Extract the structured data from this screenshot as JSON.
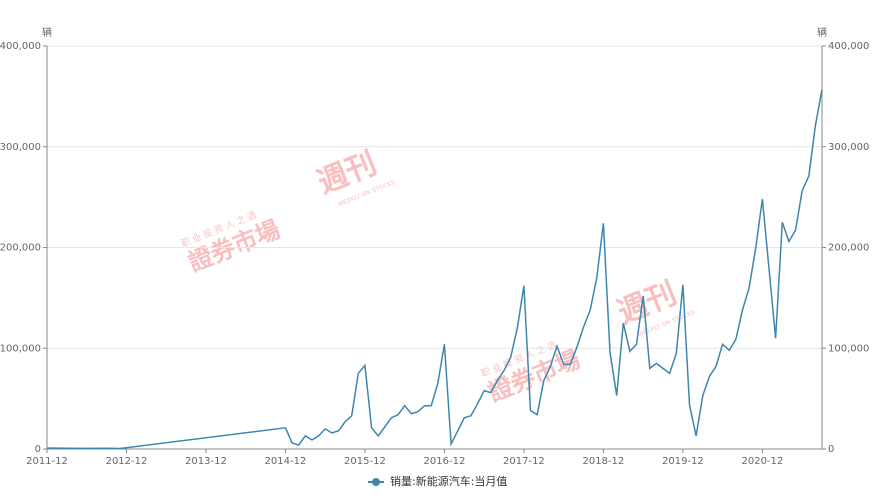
{
  "chart_data": {
    "type": "line",
    "y_unit": "辆",
    "y2_unit": "辆",
    "x": [
      "2011-12",
      "2012-03",
      "2012-06",
      "2012-09",
      "2012-11",
      "2014-12",
      "2015-01",
      "2015-02",
      "2015-03",
      "2015-04",
      "2015-05",
      "2015-06",
      "2015-07",
      "2015-08",
      "2015-09",
      "2015-10",
      "2015-11",
      "2015-12",
      "2016-01",
      "2016-02",
      "2016-03",
      "2016-04",
      "2016-05",
      "2016-06",
      "2016-07",
      "2016-08",
      "2016-09",
      "2016-10",
      "2016-11",
      "2016-12",
      "2017-01",
      "2017-02",
      "2017-03",
      "2017-04",
      "2017-05",
      "2017-06",
      "2017-07",
      "2017-08",
      "2017-09",
      "2017-10",
      "2017-11",
      "2017-12",
      "2018-01",
      "2018-02",
      "2018-03",
      "2018-04",
      "2018-05",
      "2018-06",
      "2018-07",
      "2018-08",
      "2018-09",
      "2018-10",
      "2018-11",
      "2018-12",
      "2019-01",
      "2019-02",
      "2019-03",
      "2019-04",
      "2019-05",
      "2019-06",
      "2019-07",
      "2019-08",
      "2019-09",
      "2019-10",
      "2019-11",
      "2019-12",
      "2020-01",
      "2020-02",
      "2020-03",
      "2020-04",
      "2020-05",
      "2020-06",
      "2020-07",
      "2020-08",
      "2020-09",
      "2020-10",
      "2020-11",
      "2020-12",
      "2021-01",
      "2021-02",
      "2021-03",
      "2021-04",
      "2021-05",
      "2021-06",
      "2021-07",
      "2021-08",
      "2021-09"
    ],
    "series": [
      {
        "name": "销量:新能源汽车:当月值",
        "color": "#3f86ad",
        "values": [
          1000,
          800,
          600,
          700,
          500,
          21000,
          6000,
          4000,
          13000,
          9000,
          13000,
          20000,
          16000,
          18000,
          27000,
          33000,
          75000,
          83000,
          21000,
          13000,
          22000,
          31000,
          34000,
          43000,
          35000,
          37000,
          43000,
          43000,
          65000,
          104000,
          5000,
          18000,
          31000,
          33000,
          45000,
          58000,
          56000,
          68000,
          78000,
          91000,
          120000,
          162000,
          38000,
          34000,
          68000,
          82000,
          102000,
          84000,
          84000,
          101000,
          121000,
          138000,
          170000,
          224000,
          96000,
          53000,
          125000,
          97000,
          104000,
          152000,
          80000,
          85000,
          80000,
          75000,
          95000,
          163000,
          44000,
          13000,
          53000,
          72000,
          82000,
          104000,
          98000,
          109000,
          138000,
          160000,
          200000,
          248000,
          179000,
          110000,
          225000,
          206000,
          217000,
          256000,
          271000,
          321000,
          357000
        ]
      }
    ],
    "xticks": [
      "2011-12",
      "2012-12",
      "2013-12",
      "2014-12",
      "2015-12",
      "2016-12",
      "2017-12",
      "2018-12",
      "2019-12",
      "2020-12"
    ],
    "ylim": [
      0,
      400000
    ],
    "yticks": [
      0,
      {
        "value": 100000,
        "label": "100,000"
      },
      {
        "value": 200000,
        "label": "200,000"
      },
      {
        "value": 300000,
        "label": "300,000"
      },
      {
        "value": 400000,
        "label": "400,000"
      }
    ],
    "y2lim": [
      0,
      400000
    ],
    "y2ticks": [
      0,
      {
        "value": 100000,
        "label": "100,000"
      },
      {
        "value": 200000,
        "label": "200,000"
      },
      {
        "value": 300000,
        "label": "300,000"
      },
      {
        "value": 400000,
        "label": "400,000"
      }
    ],
    "grid": true,
    "legend": "bottom",
    "watermark": {
      "slogan": "职 业 投 资 人 之 选",
      "name": "證券市場",
      "mark": "週刊",
      "english": "WEEKLY ON STOCKS"
    }
  }
}
